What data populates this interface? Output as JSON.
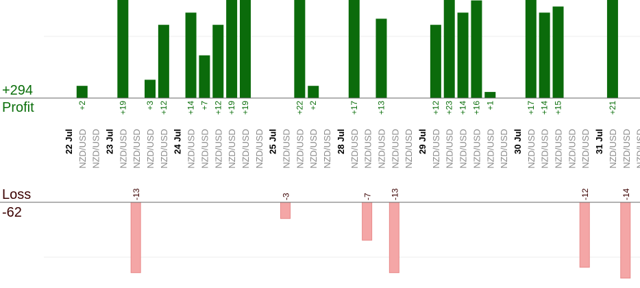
{
  "summary": {
    "profit_total": "+294",
    "profit_label": "Profit",
    "loss_label": "Loss",
    "loss_total": "-62"
  },
  "colors": {
    "profit_bar": "#0b6b0b",
    "profit_text": "#0a6e0a",
    "loss_bar": "#f4a6a6",
    "loss_text": "#3a0000",
    "date_text": "#000000",
    "symbol_text": "#8a8a8a",
    "axis": "#666666",
    "grid": "#eeeeee"
  },
  "chart_data": {
    "type": "bar",
    "symbol": "NZD/USD",
    "dates": [
      {
        "label": "22 Jul",
        "slot": 0
      },
      {
        "label": "23 Jul",
        "slot": 3
      },
      {
        "label": "24 Jul",
        "slot": 8
      },
      {
        "label": "25 Jul",
        "slot": 15
      },
      {
        "label": "28 Jul",
        "slot": 20
      },
      {
        "label": "29 Jul",
        "slot": 26
      },
      {
        "label": "30 Jul",
        "slot": 33
      },
      {
        "label": "31 Jul",
        "slot": 39
      }
    ],
    "trades": [
      {
        "slot": 1,
        "value": 2,
        "label": "+2"
      },
      {
        "slot": 2,
        "value": null,
        "label": ""
      },
      {
        "slot": 4,
        "value": 19,
        "label": "+19"
      },
      {
        "slot": 5,
        "value": -13,
        "label": "-13"
      },
      {
        "slot": 6,
        "value": 3,
        "label": "+3"
      },
      {
        "slot": 7,
        "value": 12,
        "label": "+12"
      },
      {
        "slot": 9,
        "value": 14,
        "label": "+14"
      },
      {
        "slot": 10,
        "value": 7,
        "label": "+7"
      },
      {
        "slot": 11,
        "value": 12,
        "label": "+12"
      },
      {
        "slot": 12,
        "value": 19,
        "label": "+19"
      },
      {
        "slot": 13,
        "value": 19,
        "label": "+19"
      },
      {
        "slot": 14,
        "value": null,
        "label": ""
      },
      {
        "slot": 16,
        "value": -3,
        "label": "-3"
      },
      {
        "slot": 17,
        "value": 22,
        "label": "+22"
      },
      {
        "slot": 18,
        "value": 2,
        "label": "+2"
      },
      {
        "slot": 19,
        "value": null,
        "label": ""
      },
      {
        "slot": 21,
        "value": 17,
        "label": "+17"
      },
      {
        "slot": 22,
        "value": -7,
        "label": "-7"
      },
      {
        "slot": 23,
        "value": 13,
        "label": "+13"
      },
      {
        "slot": 24,
        "value": -13,
        "label": "-13"
      },
      {
        "slot": 25,
        "value": null,
        "label": ""
      },
      {
        "slot": 27,
        "value": 12,
        "label": "+12"
      },
      {
        "slot": 28,
        "value": 23,
        "label": "+23"
      },
      {
        "slot": 29,
        "value": 14,
        "label": "+14"
      },
      {
        "slot": 30,
        "value": 16,
        "label": "+16"
      },
      {
        "slot": 31,
        "value": 1,
        "label": "+1"
      },
      {
        "slot": 32,
        "value": null,
        "label": ""
      },
      {
        "slot": 34,
        "value": 17,
        "label": "+17"
      },
      {
        "slot": 35,
        "value": 14,
        "label": "+14"
      },
      {
        "slot": 36,
        "value": 15,
        "label": "+15"
      },
      {
        "slot": 37,
        "value": null,
        "label": ""
      },
      {
        "slot": 38,
        "value": -12,
        "label": "-12"
      },
      {
        "slot": 40,
        "value": 21,
        "label": "+21"
      },
      {
        "slot": 41,
        "value": -14,
        "label": "-14"
      },
      {
        "slot": 42,
        "value": null,
        "label": ""
      }
    ],
    "profit_axis_range": [
      0,
      16
    ],
    "loss_axis_range": [
      -14,
      0
    ]
  }
}
